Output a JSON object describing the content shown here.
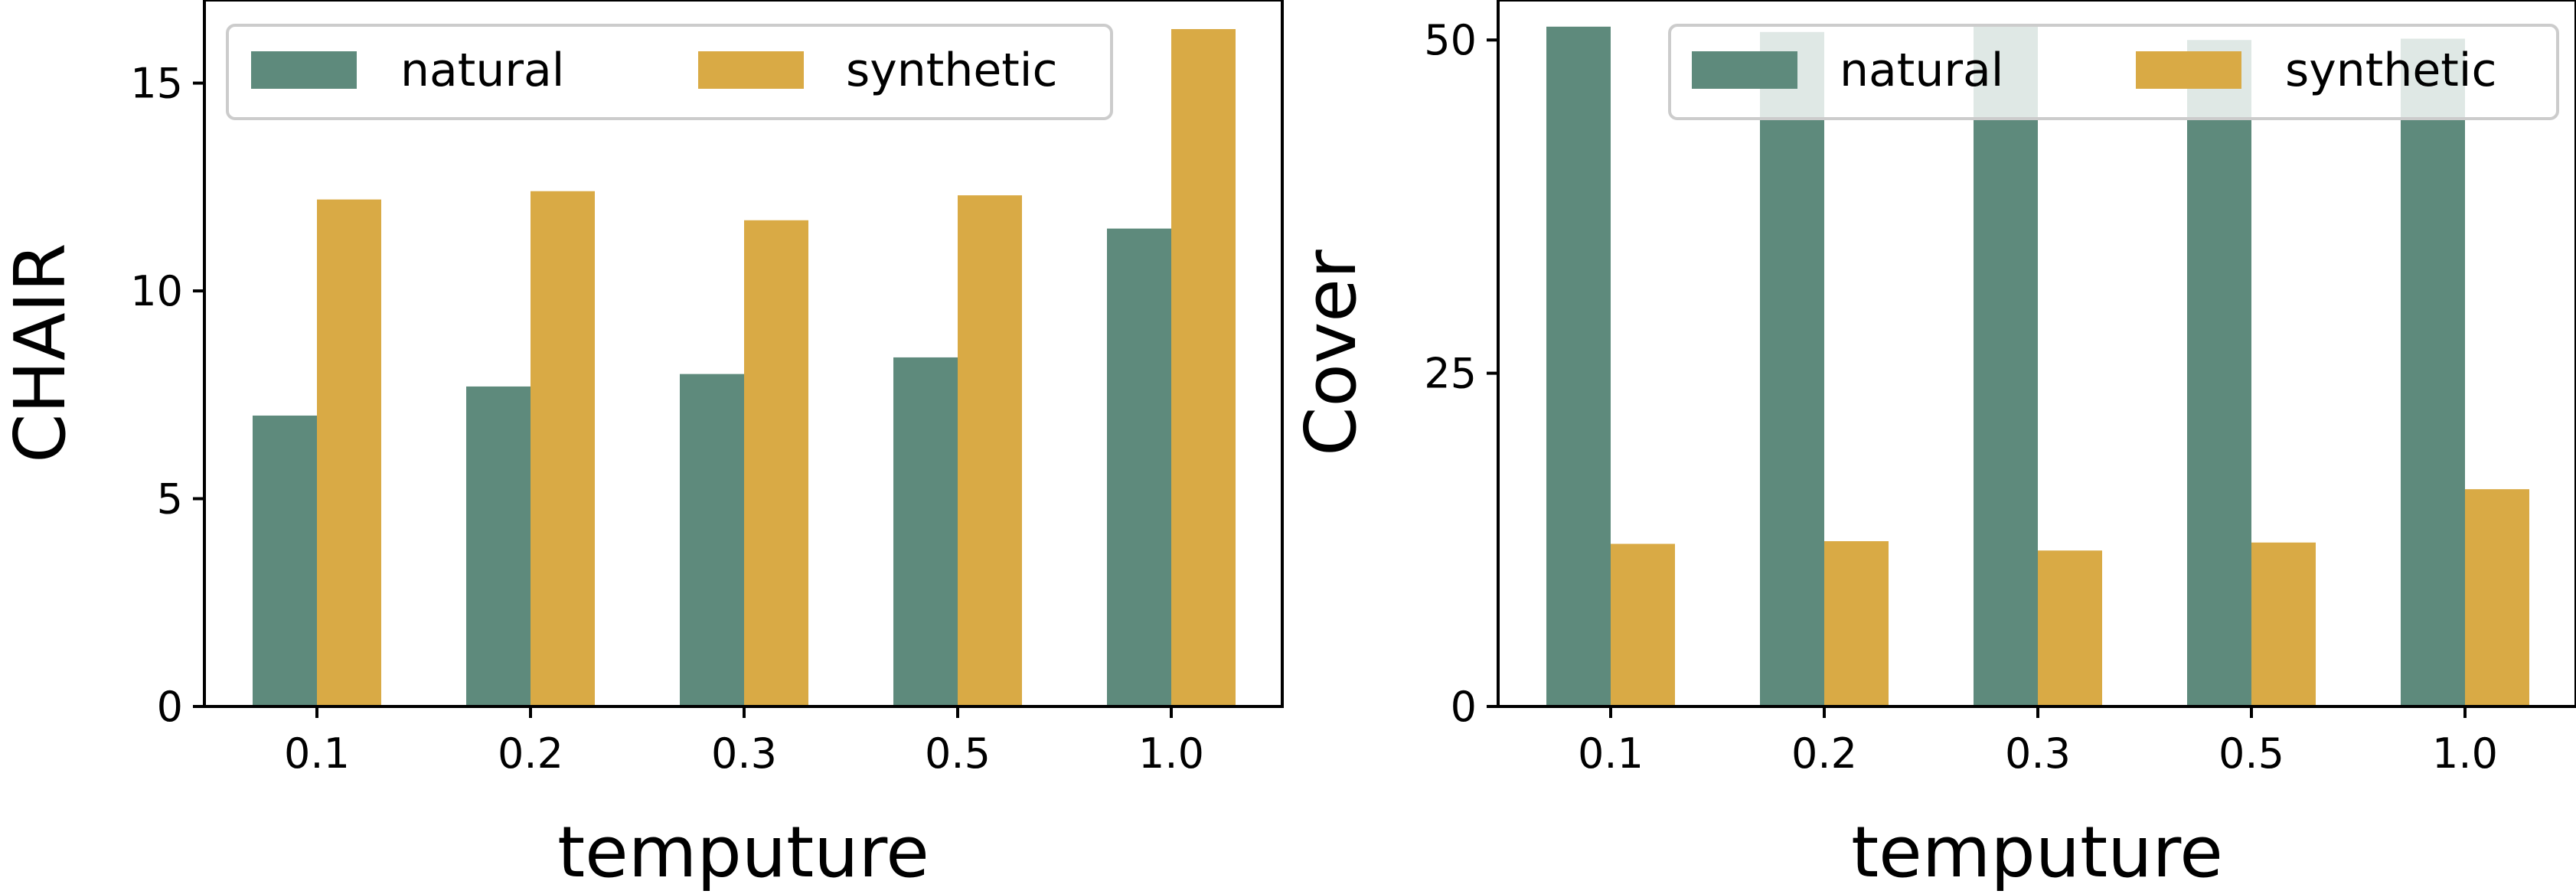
{
  "colors": {
    "natural": "#5e8a7c",
    "synthetic": "#d9aa45",
    "axis": "#000000",
    "legend_border": "#cccccc"
  },
  "chart_data": [
    {
      "type": "bar",
      "title": "",
      "xlabel": "temputure",
      "ylabel": "CHAIR",
      "categories": [
        "0.1",
        "0.2",
        "0.3",
        "0.5",
        "1.0"
      ],
      "series": [
        {
          "name": "natural",
          "values": [
            7.0,
            7.7,
            8.0,
            8.4,
            11.5
          ]
        },
        {
          "name": "synthetic",
          "values": [
            12.2,
            12.4,
            11.7,
            12.3,
            16.3
          ]
        }
      ],
      "ylim": [
        0,
        17
      ],
      "yticks": [
        0,
        5,
        10,
        15
      ],
      "ytick_labels": [
        "0",
        "5",
        "10",
        "15"
      ],
      "legend": {
        "position": "top-center",
        "columns": 2
      },
      "grid": false
    },
    {
      "type": "bar",
      "title": "",
      "xlabel": "temputure",
      "ylabel": "Cover",
      "categories": [
        "0.1",
        "0.2",
        "0.3",
        "0.5",
        "1.0"
      ],
      "series": [
        {
          "name": "natural",
          "values": [
            51.0,
            50.6,
            51.2,
            50.0,
            50.1
          ]
        },
        {
          "name": "synthetic",
          "values": [
            12.2,
            12.4,
            11.7,
            12.3,
            16.3
          ]
        }
      ],
      "ylim": [
        0,
        53
      ],
      "yticks": [
        0,
        25,
        50
      ],
      "ytick_labels": [
        "0",
        "25",
        "50"
      ],
      "legend": {
        "position": "top-right",
        "columns": 2
      },
      "grid": false
    }
  ]
}
